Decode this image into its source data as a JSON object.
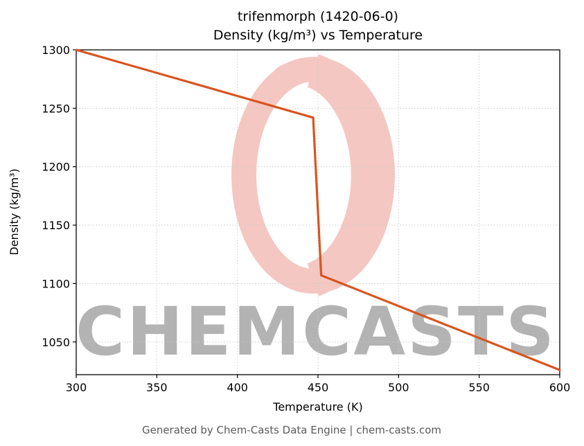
{
  "page": {
    "title_line1": "trifenmorph (1420-06-0)",
    "title_line2": "Density (kg/m³) vs Temperature",
    "footer": "Generated by Chem-Casts Data Engine | chem-casts.com"
  },
  "watermark": {
    "text": "CHEMCASTS",
    "color": "#d94535"
  },
  "chart_data": {
    "type": "line",
    "title": "trifenmorph (1420-06-0) — Density (kg/m³) vs Temperature",
    "xlabel": "Temperature (K)",
    "ylabel": "Density (kg/m³)",
    "xlim": [
      300,
      600
    ],
    "ylim": [
      1022,
      1300
    ],
    "x_ticks": [
      300,
      350,
      400,
      450,
      500,
      550,
      600
    ],
    "y_ticks": [
      1050,
      1100,
      1150,
      1200,
      1250,
      1300
    ],
    "grid": true,
    "legend": false,
    "line_color": "#d9541e",
    "series": [
      {
        "name": "density",
        "x": [
          300,
          447,
          452,
          600
        ],
        "y": [
          1300,
          1242,
          1107,
          1026
        ]
      }
    ]
  }
}
